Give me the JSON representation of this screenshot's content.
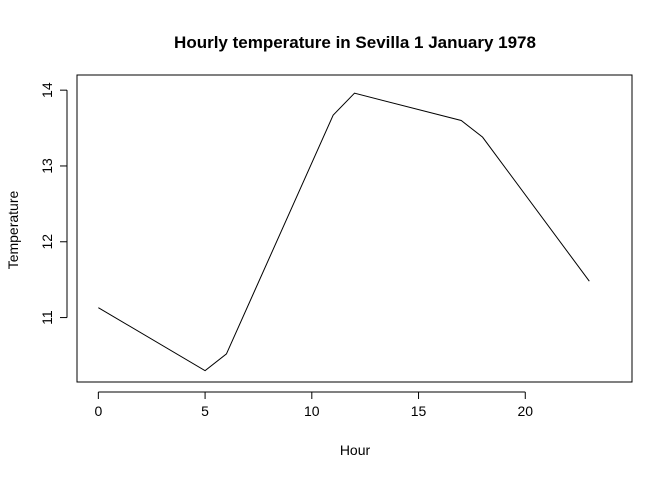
{
  "chart_data": {
    "type": "line",
    "title": "Hourly temperature in Sevilla 1 January 1978",
    "xlabel": "Hour",
    "ylabel": "Temperature",
    "x": [
      0,
      5,
      6,
      11,
      12,
      17,
      18,
      23
    ],
    "series": [
      {
        "values": [
          11.13,
          10.3,
          10.52,
          13.67,
          13.96,
          13.6,
          13.38,
          11.48
        ]
      }
    ],
    "xlim": [
      -1.0,
      25.0
    ],
    "ylim": [
      10.15,
      14.2
    ],
    "xticks": [
      "0",
      "5",
      "10",
      "15",
      "20"
    ],
    "yticks": [
      "11",
      "12",
      "13",
      "14"
    ],
    "grid": false,
    "line_color": "#000000"
  }
}
